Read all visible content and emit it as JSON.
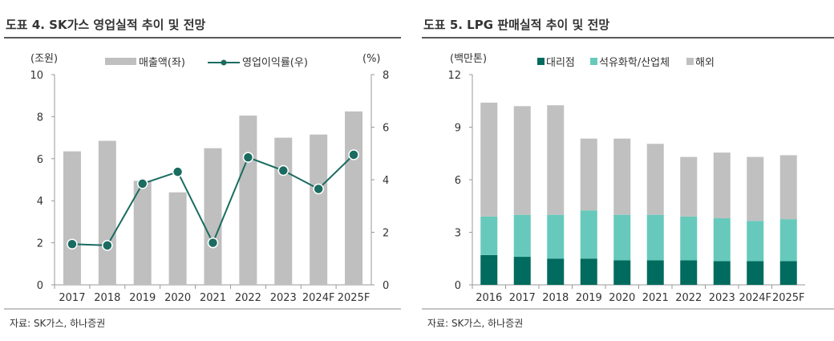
{
  "colors": {
    "revenue": "#bfbfbf",
    "margin": "#1a6b60",
    "agency": "#006b5e",
    "petchem": "#66c9bb",
    "overseas": "#c0c0c0"
  },
  "chart_data": [
    {
      "type": "bar+line",
      "title": "도표 4. SK가스 영업실적 추이 및 전망",
      "categories": [
        "2017",
        "2018",
        "2019",
        "2020",
        "2021",
        "2022",
        "2023",
        "2024F",
        "2025F"
      ],
      "ylabel_left": "(조원)",
      "ylabel_right": "(%)",
      "ylim_left": [
        0,
        10
      ],
      "ylim_right": [
        0,
        8
      ],
      "yticks_left": [
        0,
        2,
        4,
        6,
        8,
        10
      ],
      "yticks_right": [
        0,
        2,
        4,
        6,
        8
      ],
      "legend": "top",
      "series": [
        {
          "name": "매출액(좌)",
          "type": "bar",
          "axis": "left",
          "values": [
            6.35,
            6.85,
            4.95,
            4.4,
            6.5,
            8.05,
            7.0,
            7.15,
            8.25
          ]
        },
        {
          "name": "영업이익률(우)",
          "type": "line",
          "axis": "right",
          "values": [
            1.55,
            1.5,
            3.85,
            4.3,
            1.6,
            4.85,
            4.35,
            3.65,
            4.95
          ]
        }
      ],
      "source": "자료: SK가스, 하나증권"
    },
    {
      "type": "stacked-bar",
      "title": "도표 5. LPG 판매실적 추이 및 전망",
      "categories": [
        "2016",
        "2017",
        "2018",
        "2019",
        "2020",
        "2021",
        "2022",
        "2023",
        "2024F",
        "2025F"
      ],
      "ylabel": "(백만톤)",
      "ylim": [
        0,
        12
      ],
      "yticks": [
        0,
        3,
        6,
        9,
        12
      ],
      "legend": "top",
      "series": [
        {
          "name": "대리점",
          "values": [
            1.7,
            1.6,
            1.5,
            1.5,
            1.4,
            1.4,
            1.4,
            1.35,
            1.35,
            1.35
          ]
        },
        {
          "name": "석유화학/산업체",
          "values": [
            2.2,
            2.4,
            2.5,
            2.75,
            2.6,
            2.6,
            2.5,
            2.45,
            2.3,
            2.4
          ]
        },
        {
          "name": "해외",
          "values": [
            6.5,
            6.2,
            6.25,
            4.1,
            4.35,
            4.05,
            3.4,
            3.75,
            3.65,
            3.65
          ]
        }
      ],
      "source": "자료: SK가스, 하나증권"
    }
  ]
}
